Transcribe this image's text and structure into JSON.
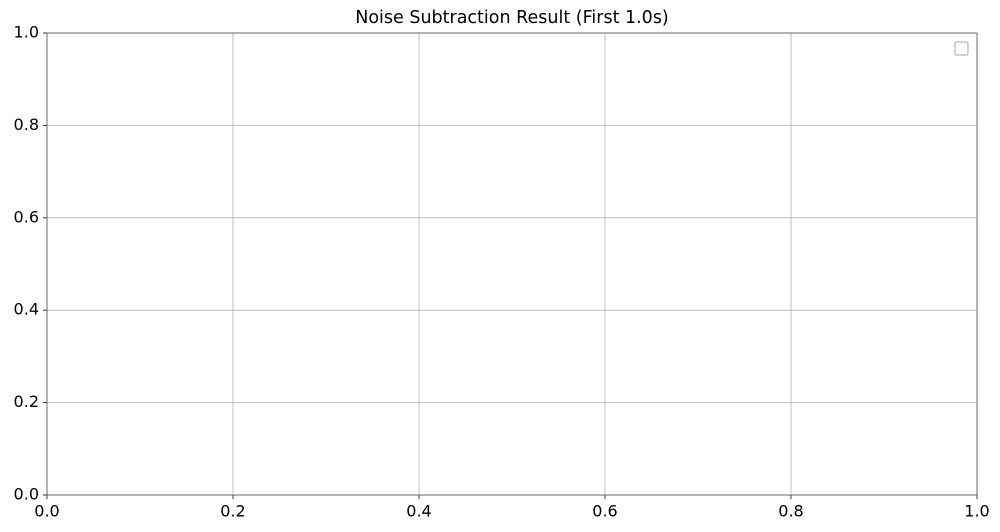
{
  "chart_data": {
    "type": "line",
    "title": "Noise Subtraction Result (First 1.0s)",
    "series": [],
    "xlim": [
      0,
      1
    ],
    "ylim": [
      0,
      1
    ],
    "xticks": [
      {
        "value": 0,
        "label": "0.0"
      },
      {
        "value": 0.2,
        "label": "0.2"
      },
      {
        "value": 0.4,
        "label": "0.4"
      },
      {
        "value": 0.6,
        "label": "0.6"
      },
      {
        "value": 0.8,
        "label": "0.8"
      },
      {
        "value": 1,
        "label": "1.0"
      }
    ],
    "yticks": [
      {
        "value": 0,
        "label": "0.0"
      },
      {
        "value": 0.2,
        "label": "0.2"
      },
      {
        "value": 0.4,
        "label": "0.4"
      },
      {
        "value": 0.6,
        "label": "0.6"
      },
      {
        "value": 0.8,
        "label": "0.8"
      },
      {
        "value": 1,
        "label": "1.0"
      }
    ],
    "grid": true,
    "legend": "upper right"
  }
}
